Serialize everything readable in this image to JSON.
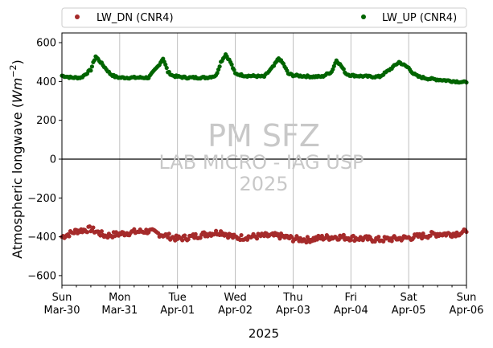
{
  "chart_data": {
    "type": "scatter",
    "title": "",
    "xlabel": "2025",
    "ylabel_text": "Atmospheric longwave (",
    "ylabel_units": "Wm",
    "ylabel_exp": "−2",
    "ylabel_close": ")",
    "ylim": [
      -650,
      650
    ],
    "yticks": [
      -600,
      -400,
      -200,
      0,
      200,
      400,
      600
    ],
    "ytick_labels": [
      "−600",
      "−400",
      "−200",
      "0",
      "200",
      "400",
      "600"
    ],
    "xlim_days": [
      0,
      7
    ],
    "x_ticks": [
      {
        "day": "Sun",
        "date": "Mar-30"
      },
      {
        "day": "Mon",
        "date": "Mar-31"
      },
      {
        "day": "Tue",
        "date": "Apr-01"
      },
      {
        "day": "Wed",
        "date": "Apr-02"
      },
      {
        "day": "Thu",
        "date": "Apr-03"
      },
      {
        "day": "Fri",
        "date": "Apr-04"
      },
      {
        "day": "Sat",
        "date": "Apr-05"
      },
      {
        "day": "Sun",
        "date": "Apr-06"
      }
    ],
    "grid": "vertical",
    "zero_line": true,
    "legend": {
      "placement": "top-outside",
      "columns": 2
    },
    "watermark": {
      "line1": "PM SFZ",
      "line2": "LAB MICRO - IAG USP",
      "line3": "2025"
    },
    "series": [
      {
        "name": "LW_DN (CNR4)",
        "color": "#a52a2a",
        "x_hours": [
          0,
          6,
          12,
          18,
          24,
          30,
          36,
          42,
          48,
          54,
          60,
          66,
          72,
          78,
          84,
          90,
          96,
          102,
          108,
          114,
          120,
          126,
          132,
          138,
          144,
          150,
          156,
          162,
          168
        ],
        "values": [
          -400,
          -370,
          -360,
          -395,
          -385,
          -375,
          -370,
          -390,
          -410,
          -400,
          -385,
          -375,
          -405,
          -400,
          -395,
          -395,
          -410,
          -415,
          -405,
          -400,
          -405,
          -410,
          -415,
          -410,
          -405,
          -395,
          -385,
          -385,
          -375
        ]
      },
      {
        "name": "LW_UP (CNR4)",
        "color": "#006400",
        "x_hours": [
          0,
          4,
          8,
          12,
          14,
          16,
          18,
          20,
          22,
          24,
          28,
          32,
          36,
          40,
          42,
          44,
          46,
          48,
          52,
          56,
          60,
          64,
          66,
          68,
          70,
          72,
          76,
          80,
          84,
          88,
          90,
          92,
          94,
          96,
          100,
          104,
          108,
          112,
          114,
          116,
          118,
          120,
          124,
          128,
          132,
          136,
          140,
          144,
          146,
          148,
          150,
          152,
          156,
          160,
          164,
          168
        ],
        "values": [
          430,
          420,
          420,
          460,
          530,
          500,
          470,
          440,
          425,
          420,
          420,
          420,
          420,
          480,
          520,
          450,
          430,
          425,
          420,
          420,
          420,
          430,
          500,
          540,
          500,
          440,
          430,
          428,
          425,
          480,
          520,
          490,
          440,
          432,
          428,
          425,
          425,
          450,
          510,
          480,
          440,
          432,
          428,
          425,
          425,
          460,
          500,
          470,
          440,
          425,
          420,
          415,
          410,
          405,
          400,
          395
        ]
      }
    ]
  }
}
